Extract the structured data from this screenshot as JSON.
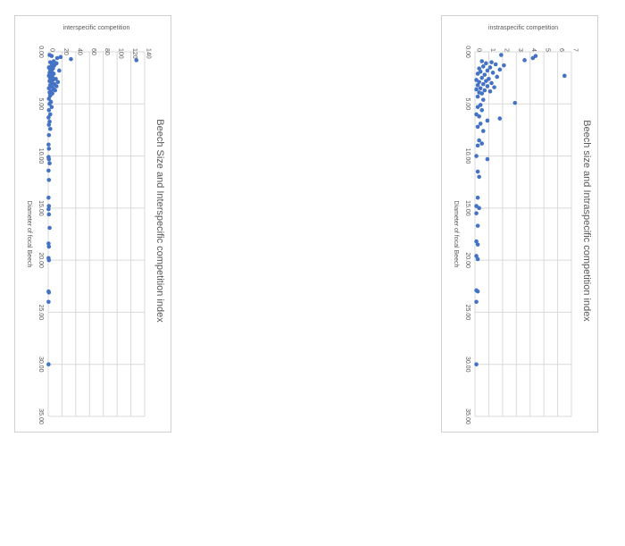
{
  "chart_data": [
    {
      "type": "scatter",
      "title": "Beech Size and Interspecific competition index",
      "xlabel": "Diameter of focal Beech",
      "ylabel": "interspecific competition",
      "xlim": [
        0,
        35
      ],
      "ylim": [
        0,
        140
      ],
      "x_ticks": [
        "0.00",
        "5.00",
        "10.00",
        "15.00",
        "20.00",
        "25.00",
        "30.00",
        "35.00"
      ],
      "y_ticks": [
        "0",
        "20",
        "40",
        "60",
        "80",
        "100",
        "120",
        "140"
      ],
      "grid": true,
      "points": [
        [
          0.3,
          2
        ],
        [
          0.4,
          5
        ],
        [
          0.5,
          18
        ],
        [
          0.6,
          13
        ],
        [
          0.7,
          33
        ],
        [
          0.8,
          128
        ],
        [
          0.9,
          8
        ],
        [
          1.0,
          3
        ],
        [
          1.1,
          12
        ],
        [
          1.2,
          6
        ],
        [
          1.3,
          9
        ],
        [
          1.4,
          4
        ],
        [
          1.5,
          1
        ],
        [
          1.6,
          7
        ],
        [
          1.7,
          3
        ],
        [
          1.8,
          16
        ],
        [
          1.9,
          5
        ],
        [
          2.0,
          2
        ],
        [
          2.1,
          8
        ],
        [
          2.2,
          4
        ],
        [
          2.3,
          1
        ],
        [
          2.4,
          6
        ],
        [
          2.5,
          3
        ],
        [
          2.6,
          11
        ],
        [
          2.7,
          7
        ],
        [
          2.8,
          2
        ],
        [
          2.9,
          14
        ],
        [
          3.0,
          5
        ],
        [
          3.1,
          9
        ],
        [
          3.2,
          3
        ],
        [
          3.3,
          12
        ],
        [
          3.4,
          6
        ],
        [
          3.5,
          1
        ],
        [
          3.6,
          8
        ],
        [
          3.7,
          10
        ],
        [
          3.8,
          4
        ],
        [
          3.9,
          2
        ],
        [
          4.0,
          6
        ],
        [
          4.2,
          3
        ],
        [
          4.5,
          1
        ],
        [
          4.8,
          4
        ],
        [
          5.0,
          2
        ],
        [
          5.3,
          5
        ],
        [
          5.6,
          1
        ],
        [
          6.0,
          3
        ],
        [
          6.3,
          0.5
        ],
        [
          6.7,
          2
        ],
        [
          7.0,
          1
        ],
        [
          7.4,
          3
        ],
        [
          8.0,
          1
        ],
        [
          8.9,
          0.5
        ],
        [
          9.3,
          1
        ],
        [
          10.1,
          0.5
        ],
        [
          10.3,
          1
        ],
        [
          10.7,
          2
        ],
        [
          11.4,
          0.5
        ],
        [
          12.3,
          1
        ],
        [
          14.0,
          0.5
        ],
        [
          14.8,
          1
        ],
        [
          15.1,
          0.5
        ],
        [
          15.6,
          1
        ],
        [
          16.9,
          2
        ],
        [
          18.4,
          0.5
        ],
        [
          18.7,
          1
        ],
        [
          19.8,
          0.5
        ],
        [
          20.0,
          1
        ],
        [
          23.0,
          0.5
        ],
        [
          23.1,
          1
        ],
        [
          24.0,
          0.5
        ],
        [
          30.0,
          0.5
        ]
      ]
    },
    {
      "type": "scatter",
      "title": "Beech size and Intraspecific competition index",
      "xlabel": "Diameter of focal Beech",
      "ylabel": "instraspecific competition",
      "xlim": [
        0,
        35
      ],
      "ylim": [
        0,
        7
      ],
      "x_ticks": [
        "0.00",
        "5.00",
        "10.00",
        "15.00",
        "20.00",
        "25.00",
        "30.00",
        "35.00"
      ],
      "y_ticks": [
        "0",
        "1",
        "2",
        "3",
        "4",
        "5",
        "6",
        "7"
      ],
      "grid": true,
      "points": [
        [
          0.3,
          1.9
        ],
        [
          0.4,
          4.4
        ],
        [
          0.6,
          4.2
        ],
        [
          0.8,
          3.6
        ],
        [
          0.9,
          0.5
        ],
        [
          1.0,
          1.2
        ],
        [
          1.1,
          0.8
        ],
        [
          1.2,
          1.5
        ],
        [
          1.3,
          2.1
        ],
        [
          1.4,
          0.6
        ],
        [
          1.5,
          1.1
        ],
        [
          1.6,
          0.3
        ],
        [
          1.7,
          1.8
        ],
        [
          1.8,
          0.9
        ],
        [
          1.9,
          0.4
        ],
        [
          2.0,
          1.3
        ],
        [
          2.1,
          0.2
        ],
        [
          2.2,
          0.7
        ],
        [
          2.3,
          6.5
        ],
        [
          2.4,
          1.6
        ],
        [
          2.5,
          0.5
        ],
        [
          2.6,
          1.0
        ],
        [
          2.7,
          0.1
        ],
        [
          2.8,
          0.8
        ],
        [
          2.9,
          0.3
        ],
        [
          3.0,
          1.2
        ],
        [
          3.1,
          0.6
        ],
        [
          3.2,
          0.2
        ],
        [
          3.3,
          0.9
        ],
        [
          3.4,
          1.4
        ],
        [
          3.5,
          0.4
        ],
        [
          3.6,
          0.1
        ],
        [
          3.7,
          0.7
        ],
        [
          3.8,
          1.1
        ],
        [
          3.9,
          0.3
        ],
        [
          4.0,
          0.5
        ],
        [
          4.3,
          0.2
        ],
        [
          4.6,
          0.6
        ],
        [
          4.9,
          2.9
        ],
        [
          5.1,
          0.4
        ],
        [
          5.3,
          0.2
        ],
        [
          5.6,
          0.5
        ],
        [
          6.0,
          0.1
        ],
        [
          6.2,
          0.3
        ],
        [
          6.4,
          1.8
        ],
        [
          6.6,
          0.9
        ],
        [
          6.9,
          0.4
        ],
        [
          7.2,
          0.2
        ],
        [
          7.6,
          0.6
        ],
        [
          8.5,
          0.3
        ],
        [
          8.8,
          0.5
        ],
        [
          9.0,
          0.2
        ],
        [
          10.0,
          0.1
        ],
        [
          10.3,
          0.9
        ],
        [
          11.5,
          0.2
        ],
        [
          12.0,
          0.3
        ],
        [
          14.0,
          0.2
        ],
        [
          14.8,
          0.1
        ],
        [
          15.0,
          0.3
        ],
        [
          15.5,
          0.1
        ],
        [
          16.7,
          0.2
        ],
        [
          18.2,
          0.1
        ],
        [
          18.5,
          0.2
        ],
        [
          19.6,
          0.1
        ],
        [
          19.9,
          0.2
        ],
        [
          22.9,
          0.1
        ],
        [
          23.0,
          0.2
        ],
        [
          24.0,
          0.1
        ],
        [
          30.0,
          0.1
        ]
      ]
    }
  ]
}
